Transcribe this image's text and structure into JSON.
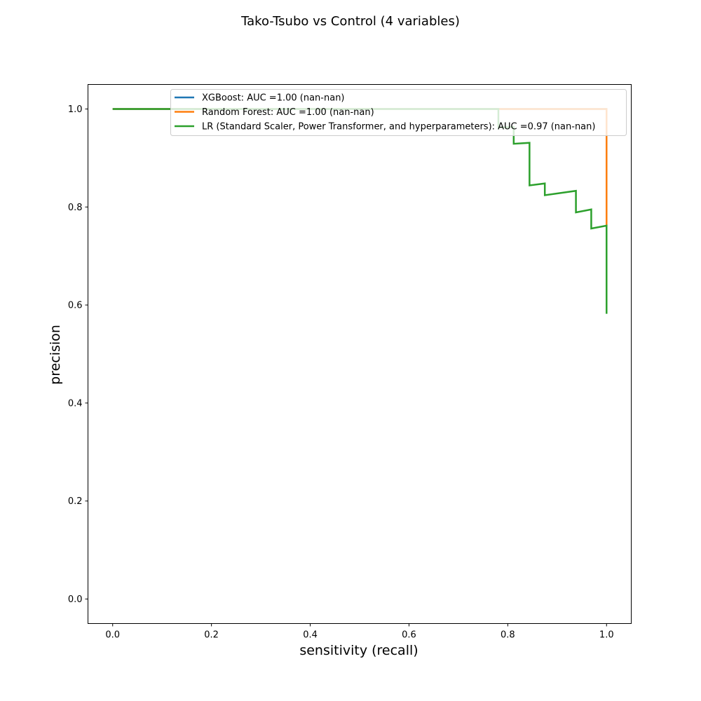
{
  "chart_data": {
    "type": "line",
    "title": "Tako-Tsubo vs Control (4 variables)",
    "xlabel": "sensitivity (recall)",
    "ylabel": "precision",
    "xlim": [
      -0.05,
      1.05
    ],
    "ylim": [
      -0.05,
      1.05
    ],
    "xticks": [
      "0.0",
      "0.2",
      "0.4",
      "0.6",
      "0.8",
      "1.0"
    ],
    "yticks": [
      "0.0",
      "0.2",
      "0.4",
      "0.6",
      "0.8",
      "1.0"
    ],
    "grid": false,
    "legend_position": "top-right",
    "series": [
      {
        "name": "XGBoost: AUC =1.00 (nan-nan)",
        "color": "#1f77b4",
        "x": [
          0.0,
          1.0,
          1.0
        ],
        "y": [
          1.0,
          1.0,
          0.76
        ]
      },
      {
        "name": "Random Forest: AUC =1.00 (nan-nan)",
        "color": "#ff7f0e",
        "x": [
          0.0,
          1.0,
          1.0
        ],
        "y": [
          1.0,
          1.0,
          0.76
        ]
      },
      {
        "name": "LR (Standard Scaler, Power Transformer, and hyperparameters): AUC =0.97 (nan-nan)",
        "color": "#2ca02c",
        "x": [
          0.0,
          0.781,
          0.781,
          0.812,
          0.812,
          0.844,
          0.844,
          0.875,
          0.875,
          0.938,
          0.938,
          0.969,
          0.969,
          1.0,
          1.0
        ],
        "y": [
          1.0,
          1.0,
          0.962,
          0.963,
          0.929,
          0.931,
          0.844,
          0.848,
          0.824,
          0.833,
          0.789,
          0.795,
          0.756,
          0.762,
          0.582
        ]
      }
    ]
  }
}
